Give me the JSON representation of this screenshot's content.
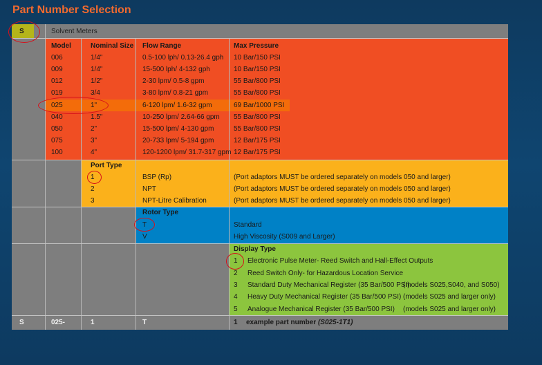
{
  "title": "Part Number Selection",
  "top_row": {
    "code": "S",
    "label": "Solvent Meters"
  },
  "headers": {
    "model": "Model",
    "nominal": "Nominal Size",
    "flow": "Flow Range",
    "pressure": "Max Pressure"
  },
  "models": [
    {
      "model": "006",
      "size": "1/4\"",
      "flow": "0.5-100 lph/ 0.13-26.4 gph",
      "pressure": "10 Bar/150 PSI"
    },
    {
      "model": "009",
      "size": "1/4\"",
      "flow": "15-500 lph/ 4-132 gph",
      "pressure": "10 Bar/150 PSI"
    },
    {
      "model": "012",
      "size": "1/2\"",
      "flow": "2-30 lpm/ 0.5-8 gpm",
      "pressure": "55 Bar/800 PSI"
    },
    {
      "model": "019",
      "size": "3/4",
      "flow": "3-80 lpm/ 0.8-21 gpm",
      "pressure": "55 Bar/800 PSI"
    },
    {
      "model": "025",
      "size": "1\"",
      "flow": "6-120 lpm/ 1.6-32 gpm",
      "pressure": "69 Bar/1000 PSI"
    },
    {
      "model": "040",
      "size": "1.5\"",
      "flow": "10-250 lpm/ 2.64-66 gpm",
      "pressure": "55 Bar/800 PSI"
    },
    {
      "model": "050",
      "size": "2\"",
      "flow": "15-500 lpm/ 4-130 gpm",
      "pressure": "55 Bar/800 PSI"
    },
    {
      "model": "075",
      "size": "3\"",
      "flow": "20-733 lpm/ 5-194 gpm",
      "pressure": "12 Bar/175 PSI"
    },
    {
      "model": "100",
      "size": "4\"",
      "flow": "120-1200 lpm/ 31.7-317 gpm",
      "pressure": "12 Bar/175 PSI"
    }
  ],
  "port": {
    "heading": "Port Type",
    "rows": [
      {
        "code": "1",
        "name": "BSP (Rp)",
        "note": "(Port adaptors MUST be ordered separately on models 050 and larger)"
      },
      {
        "code": "2",
        "name": "NPT",
        "note": "(Port adaptors MUST be ordered separately on models 050 and larger)"
      },
      {
        "code": "3",
        "name": "NPT-Litre Calibration",
        "note": "(Port adaptors MUST be ordered separately on models 050 and larger)"
      }
    ]
  },
  "rotor": {
    "heading": "Rotor Type",
    "rows": [
      {
        "code": "T",
        "name": "Standard"
      },
      {
        "code": "V",
        "name": "High Viscosity (S009 and Larger)"
      }
    ]
  },
  "display": {
    "heading": "Display Type",
    "rows": [
      {
        "code": "1",
        "name": "Electronic Pulse Meter- Reed Switch and Hall-Effect Outputs",
        "note": ""
      },
      {
        "code": "2",
        "name": "Reed Switch Only- for Hazardous Location Service",
        "note": ""
      },
      {
        "code": "3",
        "name": "Standard Duty Mechanical Register (35 Bar/500 PSI)",
        "note": "(models S025,S040, and S050)"
      },
      {
        "code": "4",
        "name": "Heavy Duty Mechanical Register (35 Bar/500 PSI)",
        "note": "(models S025 and larger only)"
      },
      {
        "code": "5",
        "name": "Analogue Mechanical Register (35 Bar/500 PSI)",
        "note": "(models S025 and larger only)"
      }
    ]
  },
  "example": {
    "c1": "S",
    "c2": "025-",
    "c3": "1",
    "c4": "T",
    "c5": "1",
    "label": "example part number",
    "part": "(S025-1T1)"
  },
  "colors": {
    "model_block": "#f04e23",
    "port_block": "#fbb11b",
    "rotor_block": "#0081c6",
    "display_block": "#8cc53e",
    "highlight_row": "#f36c0a",
    "annotation": "#d6101a"
  }
}
